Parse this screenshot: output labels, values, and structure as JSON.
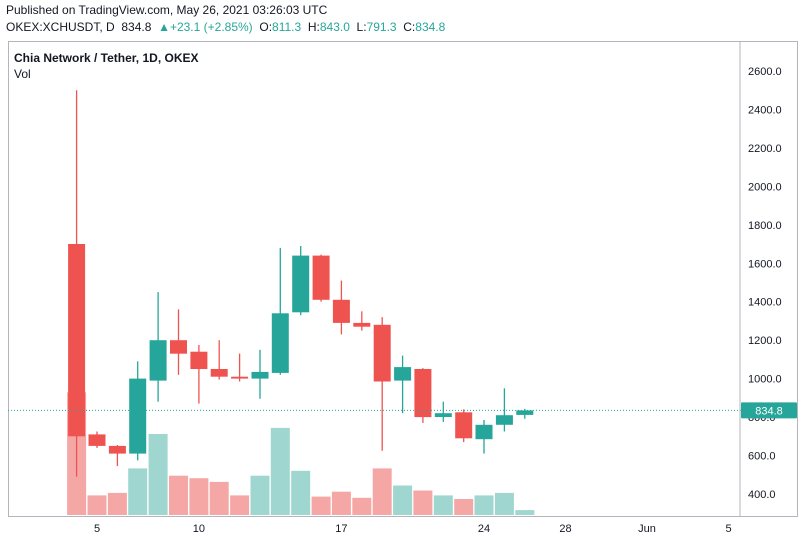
{
  "header": {
    "published": "Published on TradingView.com, May 26, 2021 03:26:03 UTC",
    "symbol": "OKEX:XCHUSDT, D",
    "last": "834.8",
    "change_arrow": "▲",
    "change": "+23.1 (+2.85%)",
    "o_label": "O:",
    "o_value": "811.3",
    "h_label": "H:",
    "h_value": "843.0",
    "l_label": "L:",
    "l_value": "791.3",
    "c_label": "C:",
    "c_value": "834.8"
  },
  "legend": {
    "title": "Chia Network / Tether, 1D, OKEX",
    "volume_label": "Vol"
  },
  "colors": {
    "up": "#26a69a",
    "down": "#ef5350",
    "up_volume": "#9fd6cf",
    "down_volume": "#f5a7a6",
    "last_price_tag": "#26a69a",
    "last_price_line": "#26a69a",
    "axis_border": "#b2b5be"
  },
  "chart_data": {
    "type": "candlestick",
    "y_ticks": [
      "2600.0",
      "2400.0",
      "2200.0",
      "2000.0",
      "1800.0",
      "1600.0",
      "1400.0",
      "1200.0",
      "1000.0",
      "800.0",
      "600.0",
      "400.0"
    ],
    "y_tick_values": [
      2600,
      2400,
      2200,
      2000,
      1800,
      1600,
      1400,
      1200,
      1000,
      800,
      600,
      400
    ],
    "x_ticks": [
      {
        "day": 5,
        "label": "5"
      },
      {
        "day": 10,
        "label": "10"
      },
      {
        "day": 17,
        "label": "17"
      },
      {
        "day": 24,
        "label": "24"
      },
      {
        "day": 28,
        "label": "28"
      },
      {
        "day": 32,
        "label": "Jun"
      },
      {
        "day": 36,
        "label": "5"
      }
    ],
    "last_price": 834.8,
    "last_price_label": "834.8",
    "candles": [
      {
        "day": 4,
        "open": 1700,
        "high": 2500,
        "low": 490,
        "close": 700
      },
      {
        "day": 5,
        "open": 710,
        "high": 725,
        "low": 640,
        "close": 650
      },
      {
        "day": 6,
        "open": 650,
        "high": 655,
        "low": 545,
        "close": 610
      },
      {
        "day": 7,
        "open": 610,
        "high": 1090,
        "low": 575,
        "close": 1000
      },
      {
        "day": 8,
        "open": 990,
        "high": 1450,
        "low": 880,
        "close": 1200
      },
      {
        "day": 9,
        "open": 1200,
        "high": 1360,
        "low": 1020,
        "close": 1130
      },
      {
        "day": 10,
        "open": 1140,
        "high": 1175,
        "low": 870,
        "close": 1050
      },
      {
        "day": 11,
        "open": 1050,
        "high": 1200,
        "low": 995,
        "close": 1010
      },
      {
        "day": 12,
        "open": 1010,
        "high": 1130,
        "low": 985,
        "close": 1000
      },
      {
        "day": 13,
        "open": 1000,
        "high": 1150,
        "low": 895,
        "close": 1035
      },
      {
        "day": 14,
        "open": 1030,
        "high": 1680,
        "low": 1020,
        "close": 1340
      },
      {
        "day": 15,
        "open": 1345,
        "high": 1690,
        "low": 1330,
        "close": 1640
      },
      {
        "day": 16,
        "open": 1640,
        "high": 1645,
        "low": 1400,
        "close": 1410
      },
      {
        "day": 17,
        "open": 1410,
        "high": 1510,
        "low": 1230,
        "close": 1290
      },
      {
        "day": 18,
        "open": 1290,
        "high": 1350,
        "low": 1250,
        "close": 1270
      },
      {
        "day": 19,
        "open": 1280,
        "high": 1320,
        "low": 625,
        "close": 985
      },
      {
        "day": 20,
        "open": 990,
        "high": 1120,
        "low": 820,
        "close": 1060
      },
      {
        "day": 21,
        "open": 1050,
        "high": 1055,
        "low": 770,
        "close": 800
      },
      {
        "day": 22,
        "open": 800,
        "high": 880,
        "low": 775,
        "close": 820
      },
      {
        "day": 23,
        "open": 825,
        "high": 840,
        "low": 670,
        "close": 690
      },
      {
        "day": 24,
        "open": 685,
        "high": 785,
        "low": 610,
        "close": 760
      },
      {
        "day": 25,
        "open": 760,
        "high": 950,
        "low": 725,
        "close": 810
      },
      {
        "day": 26,
        "open": 811.3,
        "high": 843.0,
        "low": 791.3,
        "close": 834.8
      }
    ],
    "volume_ylim": [
      0,
      110
    ],
    "volumes": [
      {
        "day": 4,
        "value": 100,
        "direction": "down"
      },
      {
        "day": 5,
        "value": 16,
        "direction": "down"
      },
      {
        "day": 6,
        "value": 18,
        "direction": "down"
      },
      {
        "day": 7,
        "value": 38,
        "direction": "up"
      },
      {
        "day": 8,
        "value": 66,
        "direction": "up"
      },
      {
        "day": 9,
        "value": 32,
        "direction": "down"
      },
      {
        "day": 10,
        "value": 30,
        "direction": "down"
      },
      {
        "day": 11,
        "value": 27,
        "direction": "down"
      },
      {
        "day": 12,
        "value": 16,
        "direction": "down"
      },
      {
        "day": 13,
        "value": 32,
        "direction": "up"
      },
      {
        "day": 14,
        "value": 71,
        "direction": "up"
      },
      {
        "day": 15,
        "value": 36,
        "direction": "up"
      },
      {
        "day": 16,
        "value": 15,
        "direction": "down"
      },
      {
        "day": 17,
        "value": 19,
        "direction": "down"
      },
      {
        "day": 18,
        "value": 14,
        "direction": "down"
      },
      {
        "day": 19,
        "value": 38,
        "direction": "down"
      },
      {
        "day": 20,
        "value": 24,
        "direction": "up"
      },
      {
        "day": 21,
        "value": 20,
        "direction": "down"
      },
      {
        "day": 22,
        "value": 16,
        "direction": "up"
      },
      {
        "day": 23,
        "value": 13,
        "direction": "down"
      },
      {
        "day": 24,
        "value": 16,
        "direction": "up"
      },
      {
        "day": 25,
        "value": 18,
        "direction": "up"
      },
      {
        "day": 26,
        "value": 4,
        "direction": "up"
      }
    ]
  }
}
